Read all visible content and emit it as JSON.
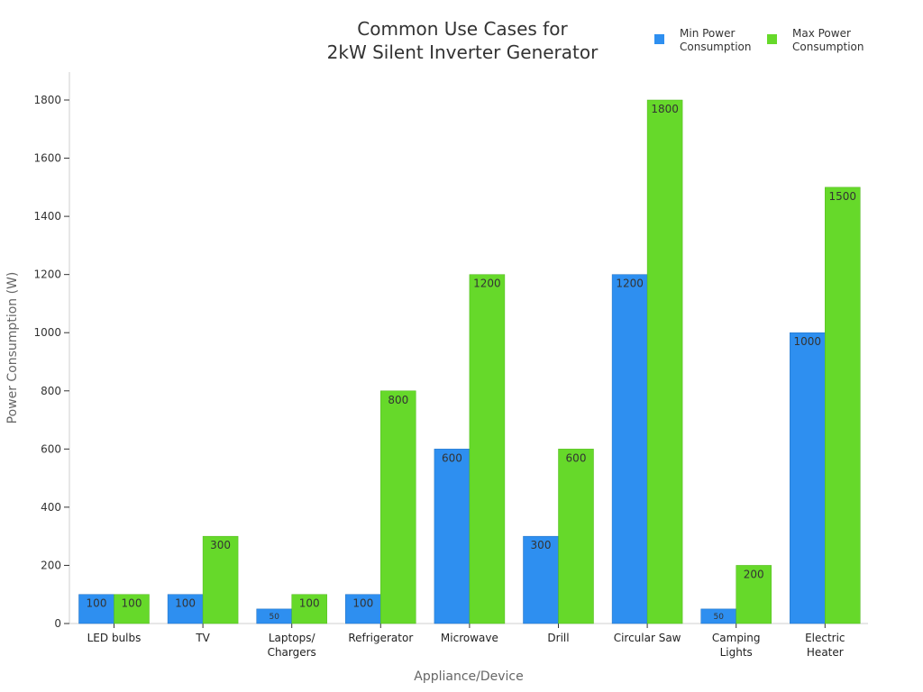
{
  "chart_data": {
    "type": "bar",
    "title_line1": "Common Use Cases for",
    "title_line2": "2kW Silent Inverter Generator",
    "xlabel": "Appliance/Device",
    "ylabel": "Power Consumption (W)",
    "ylim": [
      0,
      1900
    ],
    "yticks": [
      0,
      200,
      400,
      600,
      800,
      1000,
      1200,
      1400,
      1600,
      1800
    ],
    "categories": [
      [
        "LED bulbs"
      ],
      [
        "TV"
      ],
      [
        "Laptops/",
        "Chargers"
      ],
      [
        "Refrigerator"
      ],
      [
        "Microwave"
      ],
      [
        "Drill"
      ],
      [
        "Circular Saw"
      ],
      [
        "Camping",
        "Lights"
      ],
      [
        "Electric",
        "Heater"
      ]
    ],
    "series": [
      {
        "name_line1": "Min Power",
        "name_line2": "Consumption",
        "color": "#2e8ff0",
        "values": [
          100,
          100,
          50,
          100,
          600,
          300,
          1200,
          50,
          1000
        ]
      },
      {
        "name_line1": "Max Power",
        "name_line2": "Consumption",
        "color": "#66d92a",
        "values": [
          100,
          300,
          100,
          800,
          1200,
          600,
          1800,
          200,
          1500
        ]
      }
    ],
    "legend_position": "top-right",
    "grid": false
  }
}
